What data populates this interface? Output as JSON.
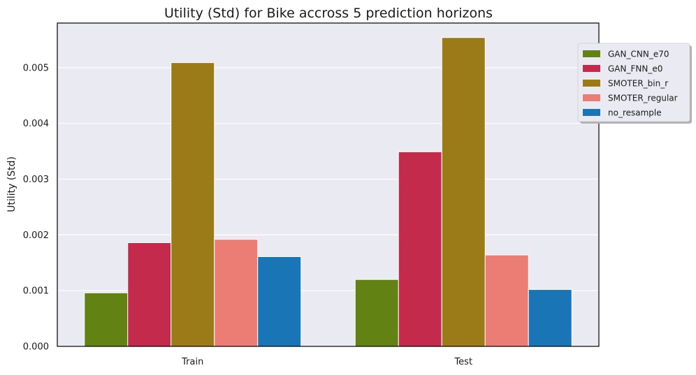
{
  "chart_data": {
    "type": "bar",
    "title": "Utility (Std) for Bike accross 5 prediction horizons",
    "xlabel": "",
    "ylabel": "Utility (Std)",
    "categories": [
      "Train",
      "Test"
    ],
    "ylim": [
      0,
      0.0058
    ],
    "yticks": [
      "0.000",
      "0.001",
      "0.002",
      "0.003",
      "0.004",
      "0.005"
    ],
    "grid": true,
    "legend_position": "top-right",
    "series": [
      {
        "name": "GAN_CNN_e70",
        "color": "#628314",
        "values": [
          0.00096,
          0.0012
        ]
      },
      {
        "name": "GAN_FNN_e0",
        "color": "#c32a4b",
        "values": [
          0.00186,
          0.00349
        ]
      },
      {
        "name": "SMOTER_bin_r",
        "color": "#9a7b17",
        "values": [
          0.00509,
          0.00554
        ]
      },
      {
        "name": "SMOTER_regular",
        "color": "#ec7d75",
        "values": [
          0.00192,
          0.00164
        ]
      },
      {
        "name": "no_resample",
        "color": "#1a75b7",
        "values": [
          0.00161,
          0.00102
        ]
      }
    ]
  }
}
